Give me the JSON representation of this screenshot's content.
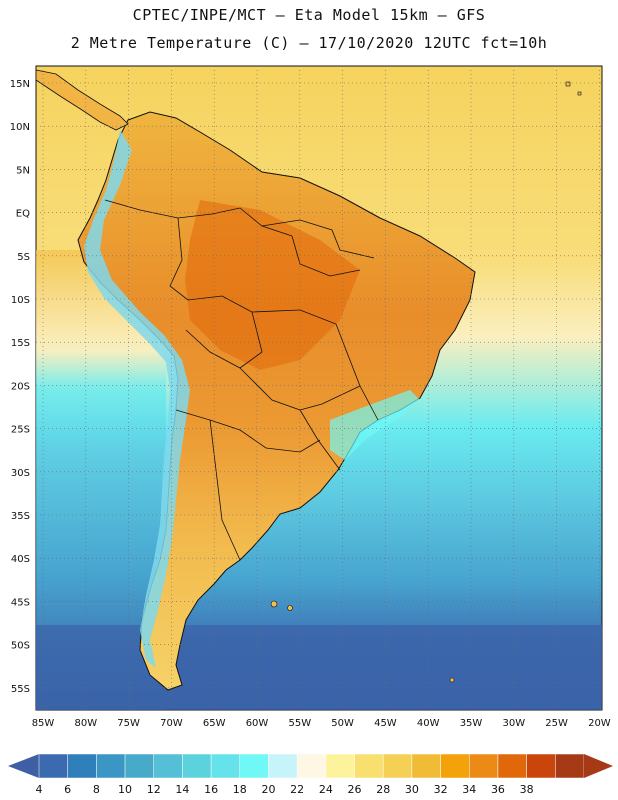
{
  "header": {
    "line1": "CPTEC/INPE/MCT –  Eta Model 15km – GFS",
    "line2": "2 Metre Temperature (C) – 17/10/2020 12UTC fct=10h"
  },
  "map": {
    "lat_labels": [
      "15N",
      "10N",
      "5N",
      "EQ",
      "5S",
      "10S",
      "15S",
      "20S",
      "25S",
      "30S",
      "35S",
      "40S",
      "45S",
      "50S",
      "55S"
    ],
    "lon_labels": [
      "85W",
      "80W",
      "75W",
      "70W",
      "65W",
      "60W",
      "55W",
      "50W",
      "45W",
      "40W",
      "35W",
      "30W",
      "25W",
      "20W"
    ]
  },
  "colorbar": {
    "labels": [
      "4",
      "6",
      "8",
      "10",
      "12",
      "14",
      "16",
      "18",
      "20",
      "22",
      "24",
      "26",
      "28",
      "30",
      "32",
      "34",
      "36",
      "38"
    ],
    "colors": [
      "#3b6ab1",
      "#2f7fba",
      "#3a96c4",
      "#47aac9",
      "#54bfd6",
      "#5cd2dd",
      "#66e3ea",
      "#6ff8f6",
      "#c7f4fb",
      "#fdf7e3",
      "#fdf39c",
      "#f9e06e",
      "#f4d054",
      "#f0bb36",
      "#f3a20a",
      "#ec8a17",
      "#e1680a",
      "#c9450c",
      "#a63a17"
    ],
    "low_arrow_color": "#3f5fa4",
    "high_arrow_color": "#a63a17"
  },
  "palette": {
    "ocean_deep": "#3e6fb3",
    "ocean_mid": "#47a4cf",
    "ocean_light": "#5cc7e0",
    "ocean_cyan": "#69ecf0",
    "ocean_warm": "#fbf3d0",
    "ocean_tropic": "#f6d35e",
    "land_hot": "#e88d2a",
    "land_warm": "#f2b445",
    "land_mild": "#f7cf67",
    "andes_cold": "#7fd8ec",
    "border": "#111111"
  }
}
